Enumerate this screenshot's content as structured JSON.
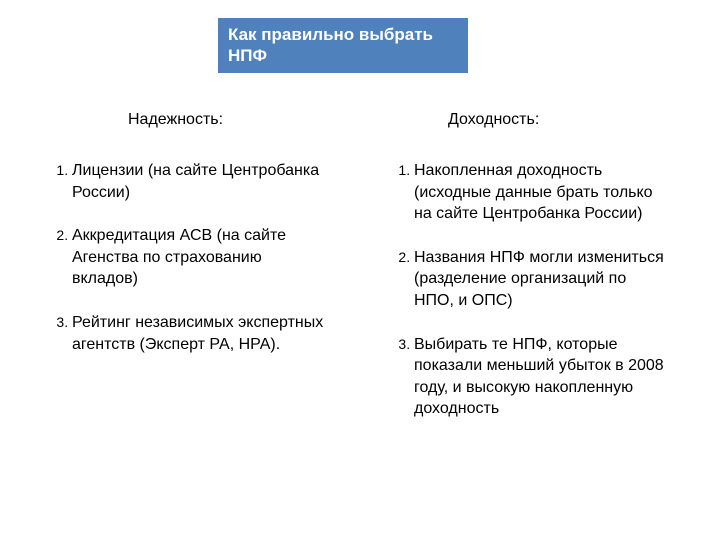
{
  "title": {
    "text": "Как правильно выбрать НПФ",
    "bg_color": "#4f81bd",
    "text_color": "#ffffff",
    "fontsize": 17
  },
  "left": {
    "heading": "Надежность:",
    "items": [
      "Лицензии (на сайте Центробанка России)",
      "Аккредитация АСВ (на сайте Агенства по страхованию вкладов)",
      "Рейтинг независимых экспертных агентств (Эксперт РА, НРА)."
    ]
  },
  "right": {
    "heading": "Доходность:",
    "items": [
      "Накопленная доходность (исходные данные брать только на сайте Центробанка России)",
      "Названия НПФ могли измениться (разделение организаций по НПО, и ОПС)",
      "Выбирать те НПФ, которые показали меньший убыток в 2008 году, и высокую накопленную доходность"
    ]
  },
  "body_fontsize": 16,
  "background_color": "#ffffff",
  "text_color": "#000000"
}
